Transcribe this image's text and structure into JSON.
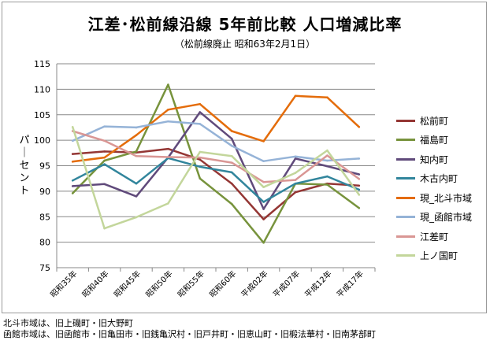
{
  "chart_data": {
    "type": "line",
    "title": "江差･松前線沿線 5年前比較 人口増減比率",
    "subtitle": "（松前線廃止 昭和63年2月1日）",
    "ylabel": "パーセント",
    "xlabel": "",
    "ylim": [
      75,
      115
    ],
    "yticks": [
      75,
      80,
      85,
      90,
      95,
      100,
      105,
      110,
      115
    ],
    "grid": true,
    "legend_position": "right",
    "categories": [
      "昭和35年",
      "昭和40年",
      "昭和45年",
      "昭和50年",
      "昭和55年",
      "昭和60年",
      "平成02年",
      "平成07年",
      "平成12年",
      "平成17年"
    ],
    "series": [
      {
        "name": "松前町",
        "color": "#943634",
        "values": [
          97.3,
          97.8,
          97.6,
          98.3,
          96.2,
          91.5,
          84.5,
          89.8,
          91.5,
          91.1
        ]
      },
      {
        "name": "福島町",
        "color": "#77933c",
        "values": [
          89.6,
          96.0,
          97.8,
          110.9,
          92.5,
          87.5,
          79.9,
          91.5,
          91.3,
          86.7
        ]
      },
      {
        "name": "知内町",
        "color": "#604a7b",
        "values": [
          91.0,
          91.4,
          89.0,
          96.6,
          105.5,
          100.3,
          86.5,
          96.4,
          94.9,
          93.3
        ]
      },
      {
        "name": "木古内町",
        "color": "#31859c",
        "values": [
          92.1,
          95.3,
          91.5,
          96.5,
          94.8,
          93.7,
          87.9,
          91.5,
          92.9,
          90.3
        ]
      },
      {
        "name": "現_北斗市域",
        "color": "#e46c0a",
        "values": [
          95.8,
          96.6,
          101.0,
          106.0,
          107.1,
          101.8,
          99.8,
          108.7,
          108.4,
          102.6
        ]
      },
      {
        "name": "現_函館市域",
        "color": "#95b3d7",
        "values": [
          99.9,
          102.7,
          102.5,
          103.7,
          103.2,
          98.9,
          95.9,
          96.8,
          96.0,
          96.4
        ]
      },
      {
        "name": "江差町",
        "color": "#d99694",
        "values": [
          101.8,
          99.9,
          96.9,
          96.7,
          96.6,
          95.6,
          91.8,
          92.2,
          97.0,
          92.4
        ]
      },
      {
        "name": "上ノ国町",
        "color": "#c3d69b",
        "values": [
          102.6,
          82.7,
          84.9,
          87.6,
          97.7,
          96.9,
          90.8,
          93.6,
          98.0,
          89.3
        ]
      }
    ]
  },
  "notes": [
    "北斗市域は、旧上磯町・旧大野町",
    "函館市域は、旧函館市・旧亀田市・旧銭亀沢村・旧戸井町・旧恵山町・旧椴法華村・旧南茅部町"
  ]
}
